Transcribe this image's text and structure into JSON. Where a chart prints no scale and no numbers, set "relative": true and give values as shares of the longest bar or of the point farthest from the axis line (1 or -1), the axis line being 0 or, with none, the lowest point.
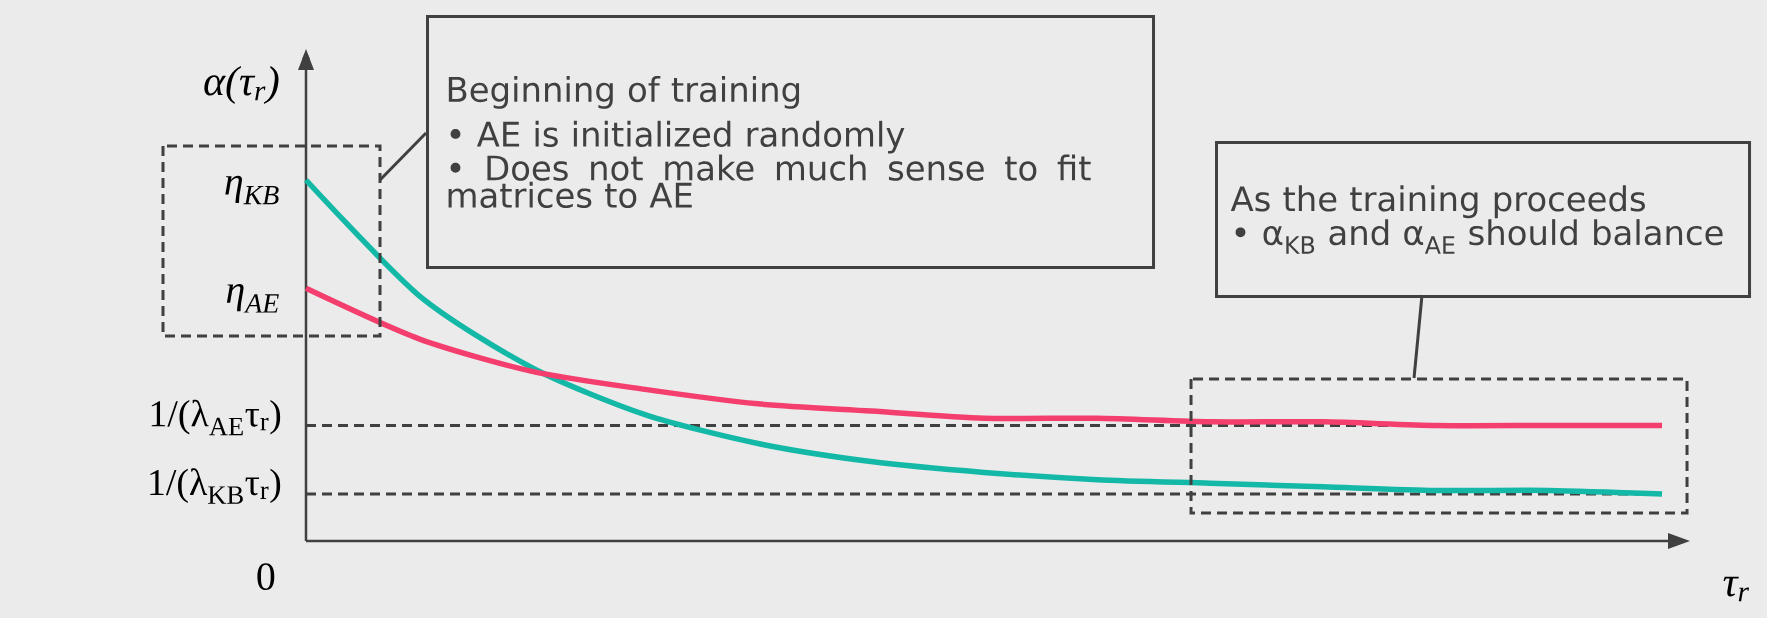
{
  "chart_data": {
    "type": "line",
    "relative": true,
    "xlabel": "τ$_{r}$",
    "ylabel": "α(τ$_{r}$)",
    "categories": [
      null,
      null,
      null,
      null,
      null,
      null,
      null,
      null,
      null,
      null,
      null,
      null,
      null
    ],
    "series": [
      {
        "color": "#14b8a6",
        "values": [
          1,
          0.68,
          0.48,
          0.35,
          0.27,
          0.22,
          0.19,
          0.17,
          0.16,
          0.15,
          0.14,
          0.14,
          0.13
        ]
      },
      {
        "color": "#f43f6e",
        "values": [
          0.7,
          0.56,
          0.47,
          0.42,
          0.38,
          0.36,
          0.34,
          0.34,
          0.33,
          0.33,
          0.32,
          0.32,
          0.32
        ]
      }
    ],
    "ref_lines": [
      {
        "axis": "y",
        "value": 0.32,
        "label": "1/(λ$_{AE}$τ$_{r}$)",
        "line_style": "dashed",
        "color": "#404040"
      },
      {
        "axis": "y",
        "value": 0.13,
        "label": "1/(λ$_{KB}$τ$_{r}$)",
        "line_style": "dashed",
        "color": "#404040"
      }
    ],
    "annotations": [
      "η$_{KB}$",
      "η$_{AE}$",
      "0",
      "Beginning of training",
      "• AE is initialized randomly",
      "• Does not make much sense to fit matrices to AE",
      "As the training proceeds",
      "• α$_{KB}$ and α$_{AE}$ should balance"
    ]
  }
}
